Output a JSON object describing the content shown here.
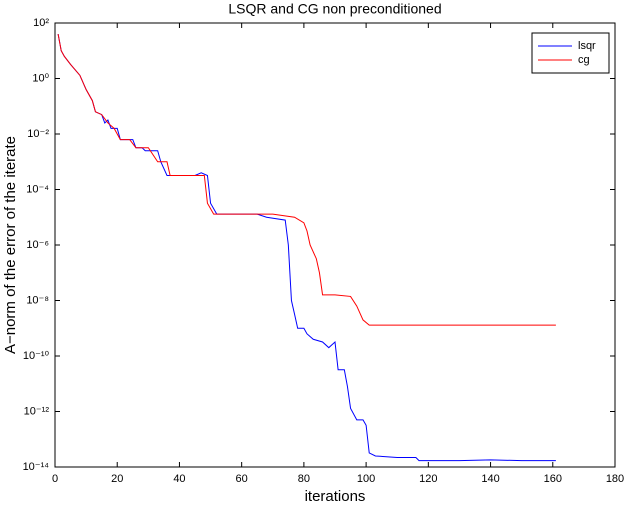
{
  "chart_data": {
    "type": "line",
    "title": "LSQR and CG non preconditioned",
    "x_label": "iterations",
    "y_label": "A−norm of the error of the iterate",
    "log_y": true,
    "xlim": [
      0,
      180
    ],
    "xticks": [
      0,
      20,
      40,
      60,
      80,
      100,
      120,
      140,
      160,
      180
    ],
    "ylim": [
      1e-14,
      100
    ],
    "yticks": [
      {
        "value": 100,
        "label": "10²"
      },
      {
        "value": 1,
        "label": "10⁰"
      },
      {
        "value": 0.01,
        "label": "10⁻²"
      },
      {
        "value": 0.0001,
        "label": "10⁻⁴"
      },
      {
        "value": 1e-06,
        "label": "10⁻⁶"
      },
      {
        "value": 1e-08,
        "label": "10⁻⁸"
      },
      {
        "value": 1e-10,
        "label": "10⁻¹⁰"
      },
      {
        "value": 1e-12,
        "label": "10⁻¹²"
      },
      {
        "value": 1e-14,
        "label": "10⁻¹⁴"
      }
    ],
    "legend_position": "upper right",
    "series": [
      {
        "name": "lsqr",
        "color": "#0000ff",
        "x": [
          1,
          2,
          3,
          5,
          8,
          10,
          12,
          13,
          15,
          16,
          17,
          18,
          20,
          21,
          25,
          26,
          28,
          29,
          33,
          34,
          36,
          38,
          45,
          47,
          49,
          50,
          52,
          65,
          68,
          74,
          75,
          76,
          77,
          78,
          80,
          81,
          83,
          86,
          88,
          90,
          91,
          93,
          94,
          95,
          97,
          99,
          100,
          101,
          103,
          110,
          116,
          117,
          130,
          140,
          150,
          161
        ],
        "values": [
          40,
          10,
          6.3,
          3.2,
          1.3,
          0.4,
          0.16,
          0.063,
          0.05,
          0.025,
          0.032,
          0.016,
          0.016,
          0.0063,
          0.0063,
          0.0032,
          0.0032,
          0.0025,
          0.0025,
          0.001,
          0.00032,
          0.00032,
          0.00032,
          0.0004,
          0.00032,
          3.2e-05,
          1.3e-05,
          1.3e-05,
          1e-05,
          7.9e-06,
          1e-06,
          1e-08,
          3.2e-09,
          1e-09,
          1e-09,
          6.3e-10,
          4e-10,
          3.2e-10,
          2e-10,
          3.2e-10,
          3.2e-11,
          3.2e-11,
          7.9e-12,
          1.3e-12,
          5e-13,
          5e-13,
          3.2e-13,
          3.2e-14,
          2.5e-14,
          2.2e-14,
          2.2e-14,
          1.7e-14,
          1.7e-14,
          1.8e-14,
          1.7e-14,
          1.7e-14
        ]
      },
      {
        "name": "cg",
        "color": "#ff0000",
        "x": [
          1,
          2,
          3,
          5,
          8,
          10,
          12,
          13,
          15,
          17,
          19,
          21,
          24,
          26,
          30,
          33,
          36,
          37,
          48,
          49,
          51,
          70,
          77,
          80,
          81,
          82,
          84,
          85,
          86,
          90,
          95,
          97,
          99,
          101,
          161
        ],
        "values": [
          40,
          10,
          6.3,
          3.2,
          1.3,
          0.4,
          0.16,
          0.063,
          0.05,
          0.025,
          0.016,
          0.0063,
          0.0063,
          0.0032,
          0.0032,
          0.001,
          0.001,
          0.00032,
          0.00032,
          3.2e-05,
          1.3e-05,
          1.3e-05,
          1e-05,
          6.3e-06,
          3.2e-06,
          1e-06,
          3.2e-07,
          1e-07,
          1.6e-08,
          1.6e-08,
          1.4e-08,
          6.3e-09,
          2e-09,
          1.3e-09,
          1.3e-09
        ]
      }
    ]
  }
}
